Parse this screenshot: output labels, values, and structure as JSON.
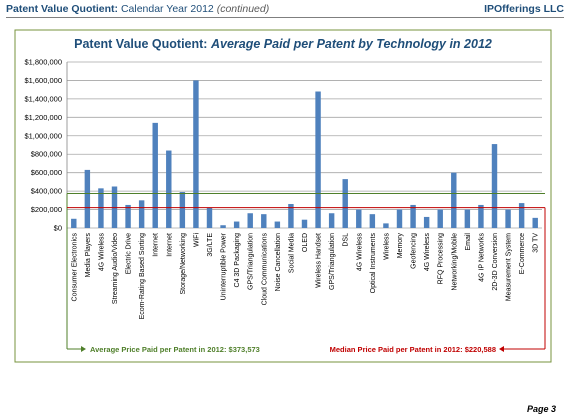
{
  "header": {
    "title_bold": "Patent Value Quotient:",
    "title_rest": "Calendar Year 2012",
    "title_note": "(continued)",
    "company": "IPOfferings LLC"
  },
  "chart_data": {
    "type": "bar",
    "title_bold": "Patent Value Quotient:",
    "title_italic": "Average Paid per Patent by Technology in 2012",
    "categories": [
      "Consumer Electronics",
      "Media Players",
      "4G Wireless",
      "Streaming Audio/Video",
      "Electric Drive",
      "Ecom-Rating Based Sorting",
      "Internet",
      "Internet",
      "Storage/Networking",
      "WiFi",
      "3G/LTE",
      "Uninterruptible Power",
      "C4 3D Packaging",
      "GPS/Triangulation",
      "Cloud Communications",
      "Noise Cancellation",
      "Social Media",
      "OLED",
      "Wireless Handset",
      "GPS/Triangulation",
      "DSL",
      "4G Wireless",
      "Optical Instruments",
      "Wireless",
      "Memory",
      "Geofencing",
      "4G Wireless",
      "RFQ Processing",
      "Networking/Mobile",
      "Email",
      "4G IP Networks",
      "2D-3D Conversion",
      "Measurement System",
      "E-Commerce",
      "3D TV"
    ],
    "values": [
      100000,
      630000,
      430000,
      450000,
      250000,
      300000,
      1140000,
      840000,
      390000,
      1600000,
      220000,
      30000,
      70000,
      160000,
      150000,
      70000,
      260000,
      90000,
      1480000,
      160000,
      530000,
      200000,
      150000,
      50000,
      200000,
      250000,
      120000,
      200000,
      600000,
      200000,
      250000,
      910000,
      200000,
      270000,
      110000
    ],
    "color": "#4f81bd",
    "ylim": [
      0,
      1800000
    ],
    "yticks": [
      {
        "value": 0,
        "label": "$0"
      },
      {
        "value": 200000,
        "label": "$200,000"
      },
      {
        "value": 400000,
        "label": "$400,000"
      },
      {
        "value": 600000,
        "label": "$600,000"
      },
      {
        "value": 800000,
        "label": "$800,000"
      },
      {
        "value": 1000000,
        "label": "$1,000,000"
      },
      {
        "value": 1200000,
        "label": "$1,200,000"
      },
      {
        "value": 1400000,
        "label": "$1,400,000"
      },
      {
        "value": 1600000,
        "label": "$1,600,000"
      },
      {
        "value": 1800000,
        "label": "$1,800,000"
      }
    ],
    "grid": true,
    "reference_lines": [
      {
        "name": "Average Price Paid per Patent in 2012:",
        "value": 373573,
        "value_label": "$373,573",
        "color": "#4f7f2a"
      },
      {
        "name": "Median Price Paid per Patent in 2012:",
        "value": 220588,
        "value_label": "$220,588",
        "color": "#c00000"
      }
    ]
  },
  "footer": {
    "page": "Page 3"
  }
}
